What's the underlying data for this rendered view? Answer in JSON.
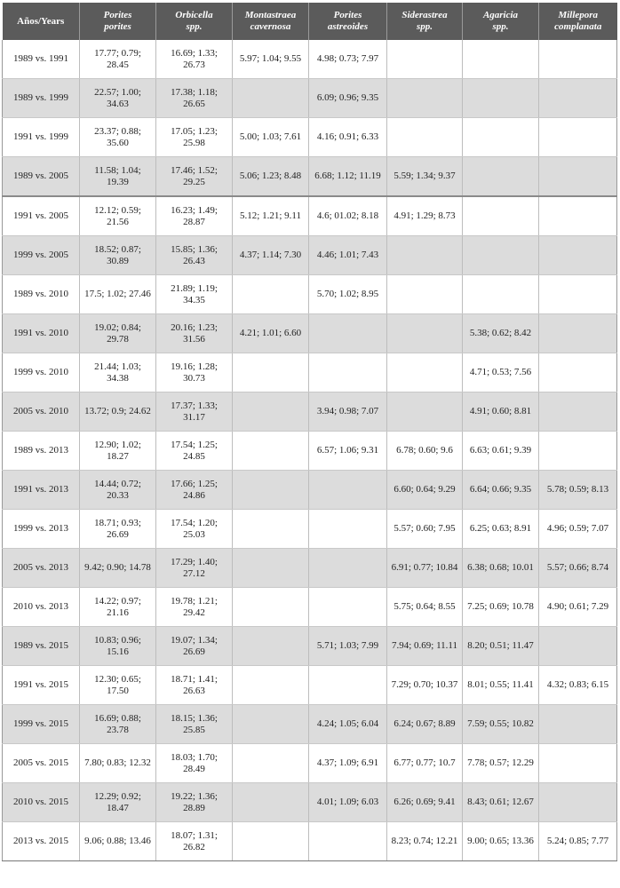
{
  "table": {
    "headers": [
      {
        "line1": "Años/Years",
        "line2": "",
        "italic": false
      },
      {
        "line1": "Porites",
        "line2": "porites",
        "italic": true
      },
      {
        "line1": "Orbicella",
        "line2": "spp.",
        "italic": true
      },
      {
        "line1": "Montastraea",
        "line2": "cavernosa",
        "italic": true
      },
      {
        "line1": "Porites",
        "line2": "astreoides",
        "italic": true
      },
      {
        "line1": "Siderastrea",
        "line2": "spp.",
        "italic": true
      },
      {
        "line1": "Agaricia",
        "line2": "spp.",
        "italic": true
      },
      {
        "line1": "Millepora",
        "line2": "complanata",
        "italic": true
      }
    ],
    "rows": [
      {
        "comparison": "1989 vs. 1991",
        "values": [
          "17.77; 0.79; 28.45",
          "16.69; 1.33; 26.73",
          "5.97; 1.04; 9.55",
          "4.98; 0.73; 7.97",
          "",
          "",
          ""
        ]
      },
      {
        "comparison": "1989 vs. 1999",
        "values": [
          "22.57; 1.00; 34.63",
          "17.38; 1.18; 26.65",
          "",
          "6.09; 0.96; 9.35",
          "",
          "",
          ""
        ]
      },
      {
        "comparison": "1991 vs. 1999",
        "values": [
          "23.37; 0.88; 35.60",
          "17.05; 1.23; 25.98",
          "5.00; 1.03; 7.61",
          "4.16; 0.91; 6.33",
          "",
          "",
          ""
        ]
      },
      {
        "comparison": "1989 vs. 2005",
        "values": [
          "11.58; 1.04; 19.39",
          "17.46; 1.52; 29.25",
          "5.06; 1.23; 8.48",
          "6.68; 1.12; 11.19",
          "5.59; 1.34; 9.37",
          "",
          ""
        ]
      },
      {
        "comparison": "1991 vs. 2005",
        "values": [
          "12.12; 0.59; 21.56",
          "16.23; 1.49; 28.87",
          "5.12; 1.21; 9.11",
          "4.6; 01.02; 8.18",
          "4.91; 1.29; 8.73",
          "",
          ""
        ]
      },
      {
        "comparison": "1999 vs. 2005",
        "values": [
          "18.52; 0.87; 30.89",
          "15.85; 1.36; 26.43",
          "4.37; 1.14; 7.30",
          "4.46; 1.01; 7.43",
          "",
          "",
          ""
        ]
      },
      {
        "comparison": "1989 vs. 2010",
        "values": [
          "17.5; 1.02; 27.46",
          "21.89; 1.19; 34.35",
          "",
          "5.70; 1.02; 8.95",
          "",
          "",
          ""
        ]
      },
      {
        "comparison": "1991 vs. 2010",
        "values": [
          "19.02; 0.84; 29.78",
          "20.16; 1.23; 31.56",
          "4.21; 1.01; 6.60",
          "",
          "",
          "5.38; 0.62; 8.42",
          ""
        ]
      },
      {
        "comparison": "1999 vs. 2010",
        "values": [
          "21.44; 1.03; 34.38",
          "19.16; 1.28; 30.73",
          "",
          "",
          "",
          "4.71; 0.53; 7.56",
          ""
        ]
      },
      {
        "comparison": "2005 vs. 2010",
        "values": [
          "13.72; 0.9; 24.62",
          "17.37; 1.33; 31.17",
          "",
          "3.94; 0.98; 7.07",
          "",
          "4.91; 0.60; 8.81",
          ""
        ]
      },
      {
        "comparison": "1989 vs. 2013",
        "values": [
          "12.90; 1.02; 18.27",
          "17.54; 1.25; 24.85",
          "",
          "6.57; 1.06; 9.31",
          "6.78; 0.60; 9.6",
          "6.63; 0.61; 9.39",
          ""
        ]
      },
      {
        "comparison": "1991 vs. 2013",
        "values": [
          "14.44; 0.72; 20.33",
          "17.66; 1.25; 24.86",
          "",
          "",
          "6.60; 0.64; 9.29",
          "6.64; 0.66; 9.35",
          "5.78; 0.59; 8.13"
        ]
      },
      {
        "comparison": "1999 vs. 2013",
        "values": [
          "18.71; 0.93; 26.69",
          "17.54; 1.20; 25.03",
          "",
          "",
          "5.57; 0.60; 7.95",
          "6.25; 0.63; 8.91",
          "4.96; 0.59; 7.07"
        ]
      },
      {
        "comparison": "2005 vs. 2013",
        "values": [
          "9.42; 0.90; 14.78",
          "17.29; 1.40; 27.12",
          "",
          "",
          "6.91; 0.77; 10.84",
          "6.38; 0.68; 10.01",
          "5.57; 0.66; 8.74"
        ]
      },
      {
        "comparison": "2010 vs. 2013",
        "values": [
          "14.22; 0.97; 21.16",
          "19.78; 1.21; 29.42",
          "",
          "",
          "5.75; 0.64; 8.55",
          "7.25; 0.69; 10.78",
          "4.90; 0.61; 7.29"
        ]
      },
      {
        "comparison": "1989 vs. 2015",
        "values": [
          "10.83; 0.96; 15.16",
          "19.07; 1.34; 26.69",
          "",
          "5.71; 1.03; 7.99",
          "7.94; 0.69; 11.11",
          "8.20; 0.51; 11.47",
          ""
        ]
      },
      {
        "comparison": "1991 vs. 2015",
        "values": [
          "12.30; 0.65; 17.50",
          "18.71; 1.41; 26.63",
          "",
          "",
          "7.29; 0.70; 10.37",
          "8.01; 0.55; 11.41",
          "4.32; 0.83; 6.15"
        ]
      },
      {
        "comparison": "1999 vs. 2015",
        "values": [
          "16.69; 0.88; 23.78",
          "18.15; 1.36; 25.85",
          "",
          "4.24; 1.05; 6.04",
          "6.24; 0.67; 8.89",
          "7.59; 0.55; 10.82",
          ""
        ]
      },
      {
        "comparison": "2005 vs. 2015",
        "values": [
          "7.80; 0.83; 12.32",
          "18.03; 1.70; 28.49",
          "",
          "4.37; 1.09; 6.91",
          "6.77; 0.77; 10.7",
          "7.78; 0.57; 12.29",
          ""
        ]
      },
      {
        "comparison": "2010 vs. 2015",
        "values": [
          "12.29; 0.92; 18.47",
          "19.22; 1.36; 28.89",
          "",
          "4.01; 1.09; 6.03",
          "6.26; 0.69; 9.41",
          "8.43; 0.61; 12.67",
          ""
        ]
      },
      {
        "comparison": "2013 vs. 2015",
        "values": [
          "9.06; 0.88; 13.46",
          "18.07; 1.31; 26.82",
          "",
          "",
          "8.23; 0.74; 12.21",
          "9.00; 0.65; 13.36",
          "5.24; 0.85; 7.77"
        ]
      }
    ]
  }
}
